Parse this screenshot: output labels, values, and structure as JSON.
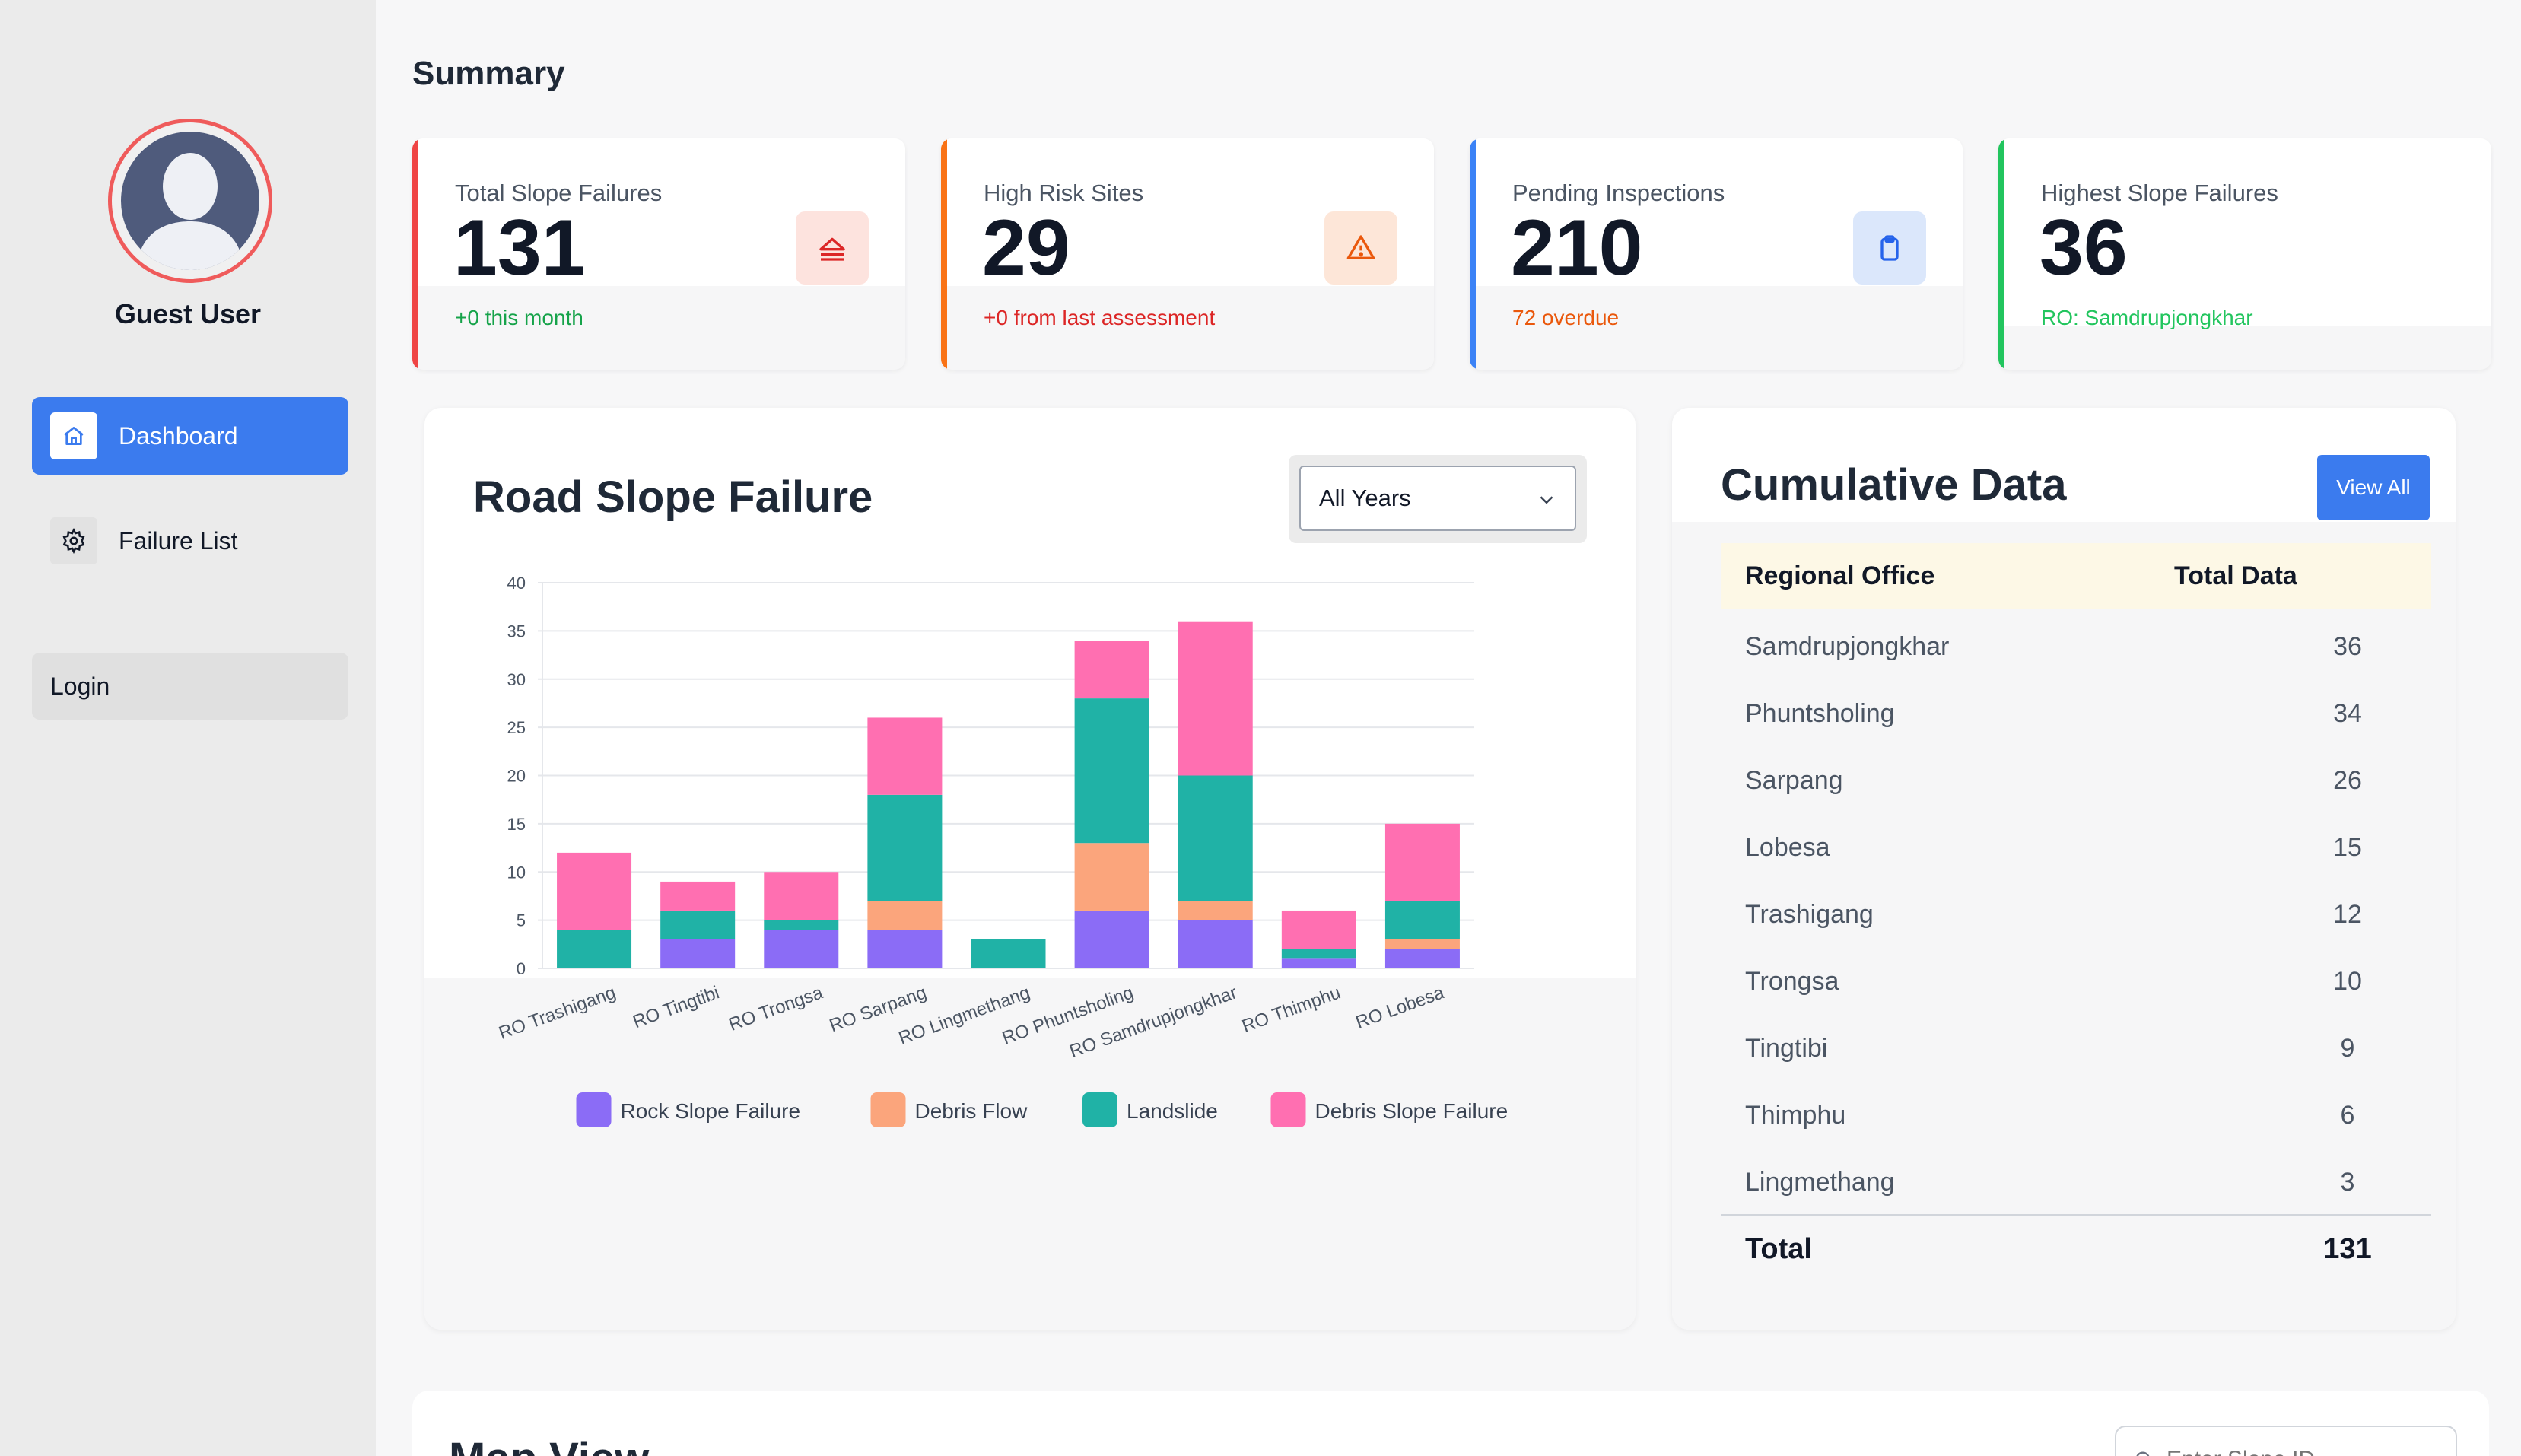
{
  "sidebar": {
    "user_name": "Guest User",
    "items": [
      {
        "label": "Dashboard",
        "icon": "home-icon"
      },
      {
        "label": "Failure List",
        "icon": "gear-icon"
      }
    ],
    "login_label": "Login"
  },
  "summary": {
    "title": "Summary",
    "cards": [
      {
        "label": "Total Slope Failures",
        "value": "131",
        "sub": "+0 this month",
        "accent": "#ef4444",
        "sub_color": "#16a34a",
        "icon": "landslide-icon"
      },
      {
        "label": "High Risk Sites",
        "value": "29",
        "sub": "+0 from last assessment",
        "accent": "#f97316",
        "sub_color": "#dc2626",
        "icon": "warning-icon"
      },
      {
        "label": "Pending Inspections",
        "value": "210",
        "sub": "72 overdue",
        "accent": "#3b82f6",
        "sub_color": "#ea580c",
        "icon": "clipboard-icon"
      },
      {
        "label": "Highest Slope Failures",
        "value": "36",
        "sub": "RO: Samdrupjongkhar",
        "accent": "#22c55e",
        "sub_color": "#22c55e",
        "icon": ""
      }
    ]
  },
  "chart_panel": {
    "title": "Road Slope Failure",
    "year_select": "All Years"
  },
  "chart_data": {
    "type": "bar",
    "stacked": true,
    "title": "Road Slope Failure",
    "categories": [
      "RO Trashigang",
      "RO Tingtibi",
      "RO Trongsa",
      "RO Sarpang",
      "RO Lingmethang",
      "RO Phuntsholing",
      "RO Samdrupjongkhar",
      "RO Thimphu",
      "RO Lobesa"
    ],
    "series": [
      {
        "name": "Rock Slope Failure",
        "color": "#8b6cf6",
        "values": [
          0,
          3,
          4,
          4,
          0,
          6,
          5,
          1,
          2
        ]
      },
      {
        "name": "Debris Flow",
        "color": "#fba57c",
        "values": [
          0,
          0,
          0,
          3,
          0,
          7,
          2,
          0,
          1
        ]
      },
      {
        "name": "Landslide",
        "color": "#20b2a6",
        "values": [
          4,
          3,
          1,
          11,
          3,
          15,
          13,
          1,
          4
        ]
      },
      {
        "name": "Debris Slope Failure",
        "color": "#ff6fb1",
        "values": [
          8,
          3,
          5,
          8,
          0,
          6,
          16,
          4,
          8
        ]
      }
    ],
    "ylim": [
      0,
      40
    ],
    "yticks": [
      "0",
      "5",
      "10",
      "15",
      "20",
      "25",
      "30",
      "35",
      "40"
    ],
    "legend_position": "bottom",
    "xlabel": "",
    "ylabel": ""
  },
  "cumulative": {
    "title": "Cumulative Data",
    "view_all": "View All",
    "headers": [
      "Regional Office",
      "Total Data"
    ],
    "rows": [
      {
        "office": "Samdrupjongkhar",
        "total": "36"
      },
      {
        "office": "Phuntsholing",
        "total": "34"
      },
      {
        "office": "Sarpang",
        "total": "26"
      },
      {
        "office": "Lobesa",
        "total": "15"
      },
      {
        "office": "Trashigang",
        "total": "12"
      },
      {
        "office": "Trongsa",
        "total": "10"
      },
      {
        "office": "Tingtibi",
        "total": "9"
      },
      {
        "office": "Thimphu",
        "total": "6"
      },
      {
        "office": "Lingmethang",
        "total": "3"
      }
    ],
    "total_label": "Total",
    "total_value": "131"
  },
  "map": {
    "title": "Map View",
    "search_placeholder": "Enter Slope ID"
  }
}
